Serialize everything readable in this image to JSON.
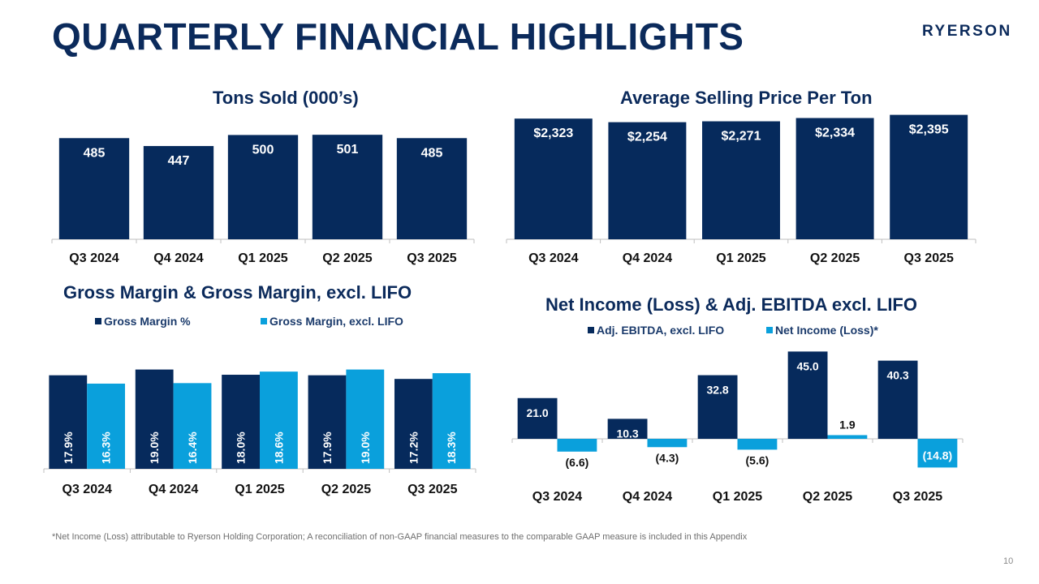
{
  "page": {
    "title": "QUARTERLY FINANCIAL HIGHLIGHTS",
    "logo": "RYERSON",
    "footnote": "*Net Income (Loss) attributable to Ryerson Holding Corporation; A reconciliation of non-GAAP financial measures to the comparable GAAP measure is included in this Appendix",
    "page_number": "10"
  },
  "colors": {
    "dark": "#062a5c",
    "light": "#0aa0dc",
    "axis": "#bfbfbf",
    "text_dark": "#111111"
  },
  "chart_data": [
    {
      "id": "tons",
      "type": "bar",
      "title": "Tons Sold (000’s)",
      "categories": [
        "Q3 2024",
        "Q4 2024",
        "Q1 2025",
        "Q2 2025",
        "Q3 2025"
      ],
      "series": [
        {
          "name": "Tons Sold",
          "values": [
            485,
            447,
            500,
            501,
            485
          ],
          "labels": [
            "485",
            "447",
            "500",
            "501",
            "485"
          ]
        }
      ],
      "ylim": [
        0,
        560
      ],
      "legend": "none",
      "label_position": "inside-top"
    },
    {
      "id": "asp",
      "type": "bar",
      "title": "Average Selling Price Per Ton",
      "categories": [
        "Q3 2024",
        "Q4 2024",
        "Q1 2025",
        "Q2 2025",
        "Q3 2025"
      ],
      "series": [
        {
          "name": "Average Selling Price",
          "values": [
            2323,
            2254,
            2271,
            2334,
            2395
          ],
          "labels": [
            "$2,323",
            "$2,254",
            "$2,271",
            "$2,334",
            "$2,395"
          ]
        }
      ],
      "ylim": [
        0,
        2420
      ],
      "legend": "none",
      "label_position": "inside-top"
    },
    {
      "id": "gm",
      "type": "bar",
      "title": "Gross Margin & Gross Margin, excl. LIFO",
      "categories": [
        "Q3 2024",
        "Q4 2024",
        "Q1 2025",
        "Q2 2025",
        "Q3 2025"
      ],
      "series": [
        {
          "name": "Gross Margin %",
          "values": [
            17.9,
            19.0,
            18.0,
            17.9,
            17.2
          ],
          "labels": [
            "17.9%",
            "19.0%",
            "18.0%",
            "17.9%",
            "17.2%"
          ]
        },
        {
          "name": "Gross Margin, excl. LIFO",
          "values": [
            16.3,
            16.4,
            18.6,
            19.0,
            18.3
          ],
          "labels": [
            "16.3%",
            "16.4%",
            "18.6%",
            "19.0%",
            "18.3%"
          ]
        }
      ],
      "ylim": [
        0,
        19.4
      ],
      "legend": "top",
      "label_position": "inside-bottom-rotated"
    },
    {
      "id": "ni",
      "type": "bar",
      "title": "Net Income (Loss) & Adj. EBITDA excl. LIFO",
      "categories": [
        "Q3 2024",
        "Q4 2024",
        "Q1 2025",
        "Q2 2025",
        "Q3 2025"
      ],
      "series": [
        {
          "name": "Adj. EBITDA, excl. LIFO",
          "values": [
            21.0,
            10.3,
            32.8,
            45.0,
            40.3
          ],
          "labels": [
            "21.0",
            "10.3",
            "32.8",
            "45.0",
            "40.3"
          ]
        },
        {
          "name": "Net Income (Loss)*",
          "values": [
            -6.6,
            -4.3,
            -5.6,
            1.9,
            -14.8
          ],
          "labels": [
            "(6.6)",
            "(4.3)",
            "(5.6)",
            "1.9",
            "(14.8)"
          ]
        }
      ],
      "ylim": [
        -16,
        46
      ],
      "legend": "top",
      "label_position": "mixed"
    }
  ]
}
